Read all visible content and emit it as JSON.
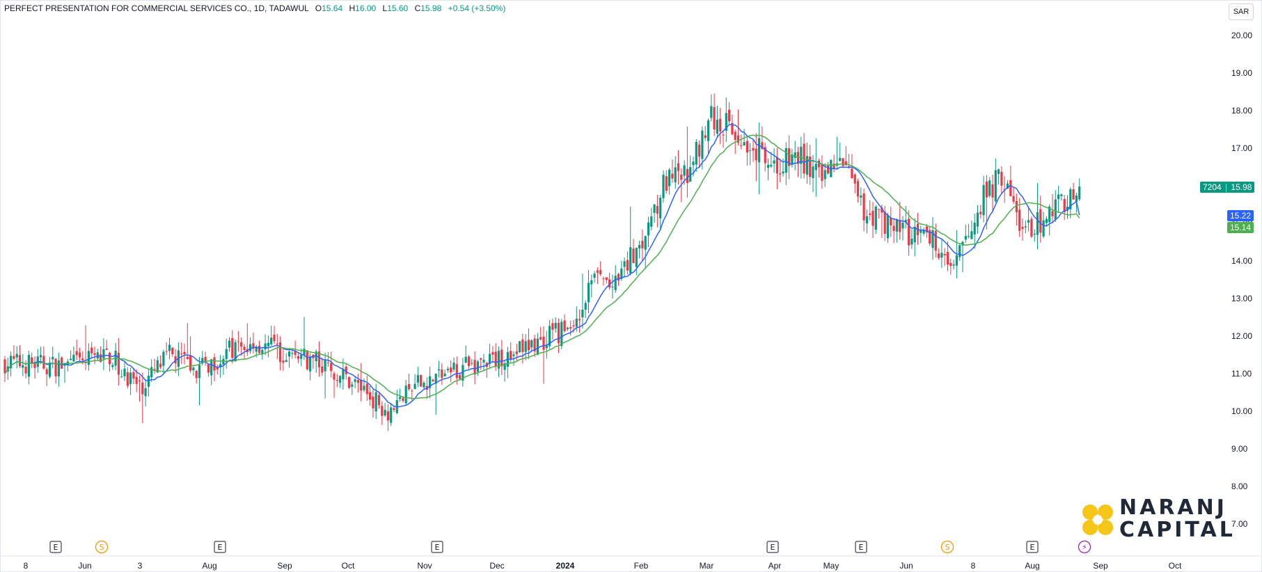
{
  "header": {
    "symbol": "PERFECT PRESENTATION FOR COMMERCIAL SERVICES CO., 1D, TADAWUL",
    "open_label": "O",
    "open": "15.64",
    "high_label": "H",
    "high": "16.00",
    "low_label": "L",
    "low": "15.60",
    "close_label": "C",
    "close": "15.98",
    "change": "+0.54 (+3.50%)"
  },
  "currency": "SAR",
  "price_tags": {
    "symbol_code": "7204",
    "last": "15.98",
    "ma_fast": "15.22",
    "ma_slow": "15.14"
  },
  "logo": {
    "line1": "NARANJ",
    "line2": "CAPITAL"
  },
  "colors": {
    "up": "#089981",
    "down": "#f23645",
    "ma_fast": "#2962ff",
    "ma_slow": "#4caf50",
    "logo_gold": "#f5c518"
  },
  "events": [
    {
      "type": "E",
      "x_label": "May 2023"
    },
    {
      "type": "S",
      "x_label": "Jun 2023"
    },
    {
      "type": "E",
      "x_label": "Aug 2023"
    },
    {
      "type": "E",
      "x_label": "Nov 2023"
    },
    {
      "type": "E",
      "x_label": "Apr 2024"
    },
    {
      "type": "E",
      "x_label": "May 2024"
    },
    {
      "type": "S",
      "x_label": "Jul 2024"
    },
    {
      "type": "E",
      "x_label": "Aug 2024"
    },
    {
      "type": "⚡",
      "x_label": "Aug 2024"
    }
  ],
  "chart_data": {
    "type": "candlestick",
    "y_ticks": [
      "20.00",
      "19.00",
      "18.00",
      "17.00",
      "16.00",
      "15.00",
      "14.00",
      "13.00",
      "12.00",
      "11.00",
      "10.00",
      "9.00",
      "8.00",
      "7.00"
    ],
    "x_ticks": [
      "8",
      "Jun",
      "3",
      "Aug",
      "Sep",
      "Oct",
      "Nov",
      "Dec",
      "2024",
      "Feb",
      "Mar",
      "Apr",
      "May",
      "Jun",
      "8",
      "Aug",
      "Sep",
      "Oct"
    ],
    "ylim": [
      6.4,
      20.4
    ],
    "grid": false,
    "anchors": [
      [
        0,
        11.3
      ],
      [
        20,
        11.2
      ],
      [
        35,
        11.5
      ],
      [
        45,
        10.6
      ],
      [
        55,
        11.5
      ],
      [
        65,
        11.1
      ],
      [
        75,
        11.6
      ],
      [
        85,
        11.8
      ],
      [
        95,
        11.5
      ],
      [
        105,
        11.3
      ],
      [
        118,
        10.7
      ],
      [
        128,
        10.0
      ],
      [
        138,
        10.7
      ],
      [
        150,
        11.1
      ],
      [
        165,
        11.4
      ],
      [
        180,
        11.9
      ],
      [
        190,
        12.3
      ],
      [
        197,
        13.6
      ],
      [
        204,
        13.3
      ],
      [
        212,
        14.5
      ],
      [
        220,
        16.0
      ],
      [
        228,
        16.3
      ],
      [
        235,
        17.8
      ],
      [
        242,
        17.6
      ],
      [
        250,
        17.1
      ],
      [
        258,
        16.5
      ],
      [
        265,
        16.8
      ],
      [
        272,
        16.2
      ],
      [
        280,
        16.6
      ],
      [
        286,
        15.4
      ],
      [
        300,
        14.8
      ],
      [
        310,
        14.6
      ],
      [
        318,
        13.9
      ],
      [
        325,
        15.5
      ],
      [
        333,
        16.3
      ],
      [
        340,
        14.8
      ],
      [
        346,
        15.0
      ],
      [
        352,
        15.6
      ]
    ],
    "series": [
      {
        "name": "MA fast",
        "color": "#2962ff",
        "last": 15.22
      },
      {
        "name": "MA slow",
        "color": "#4caf50",
        "last": 15.14
      }
    ],
    "last_close": 15.98
  }
}
